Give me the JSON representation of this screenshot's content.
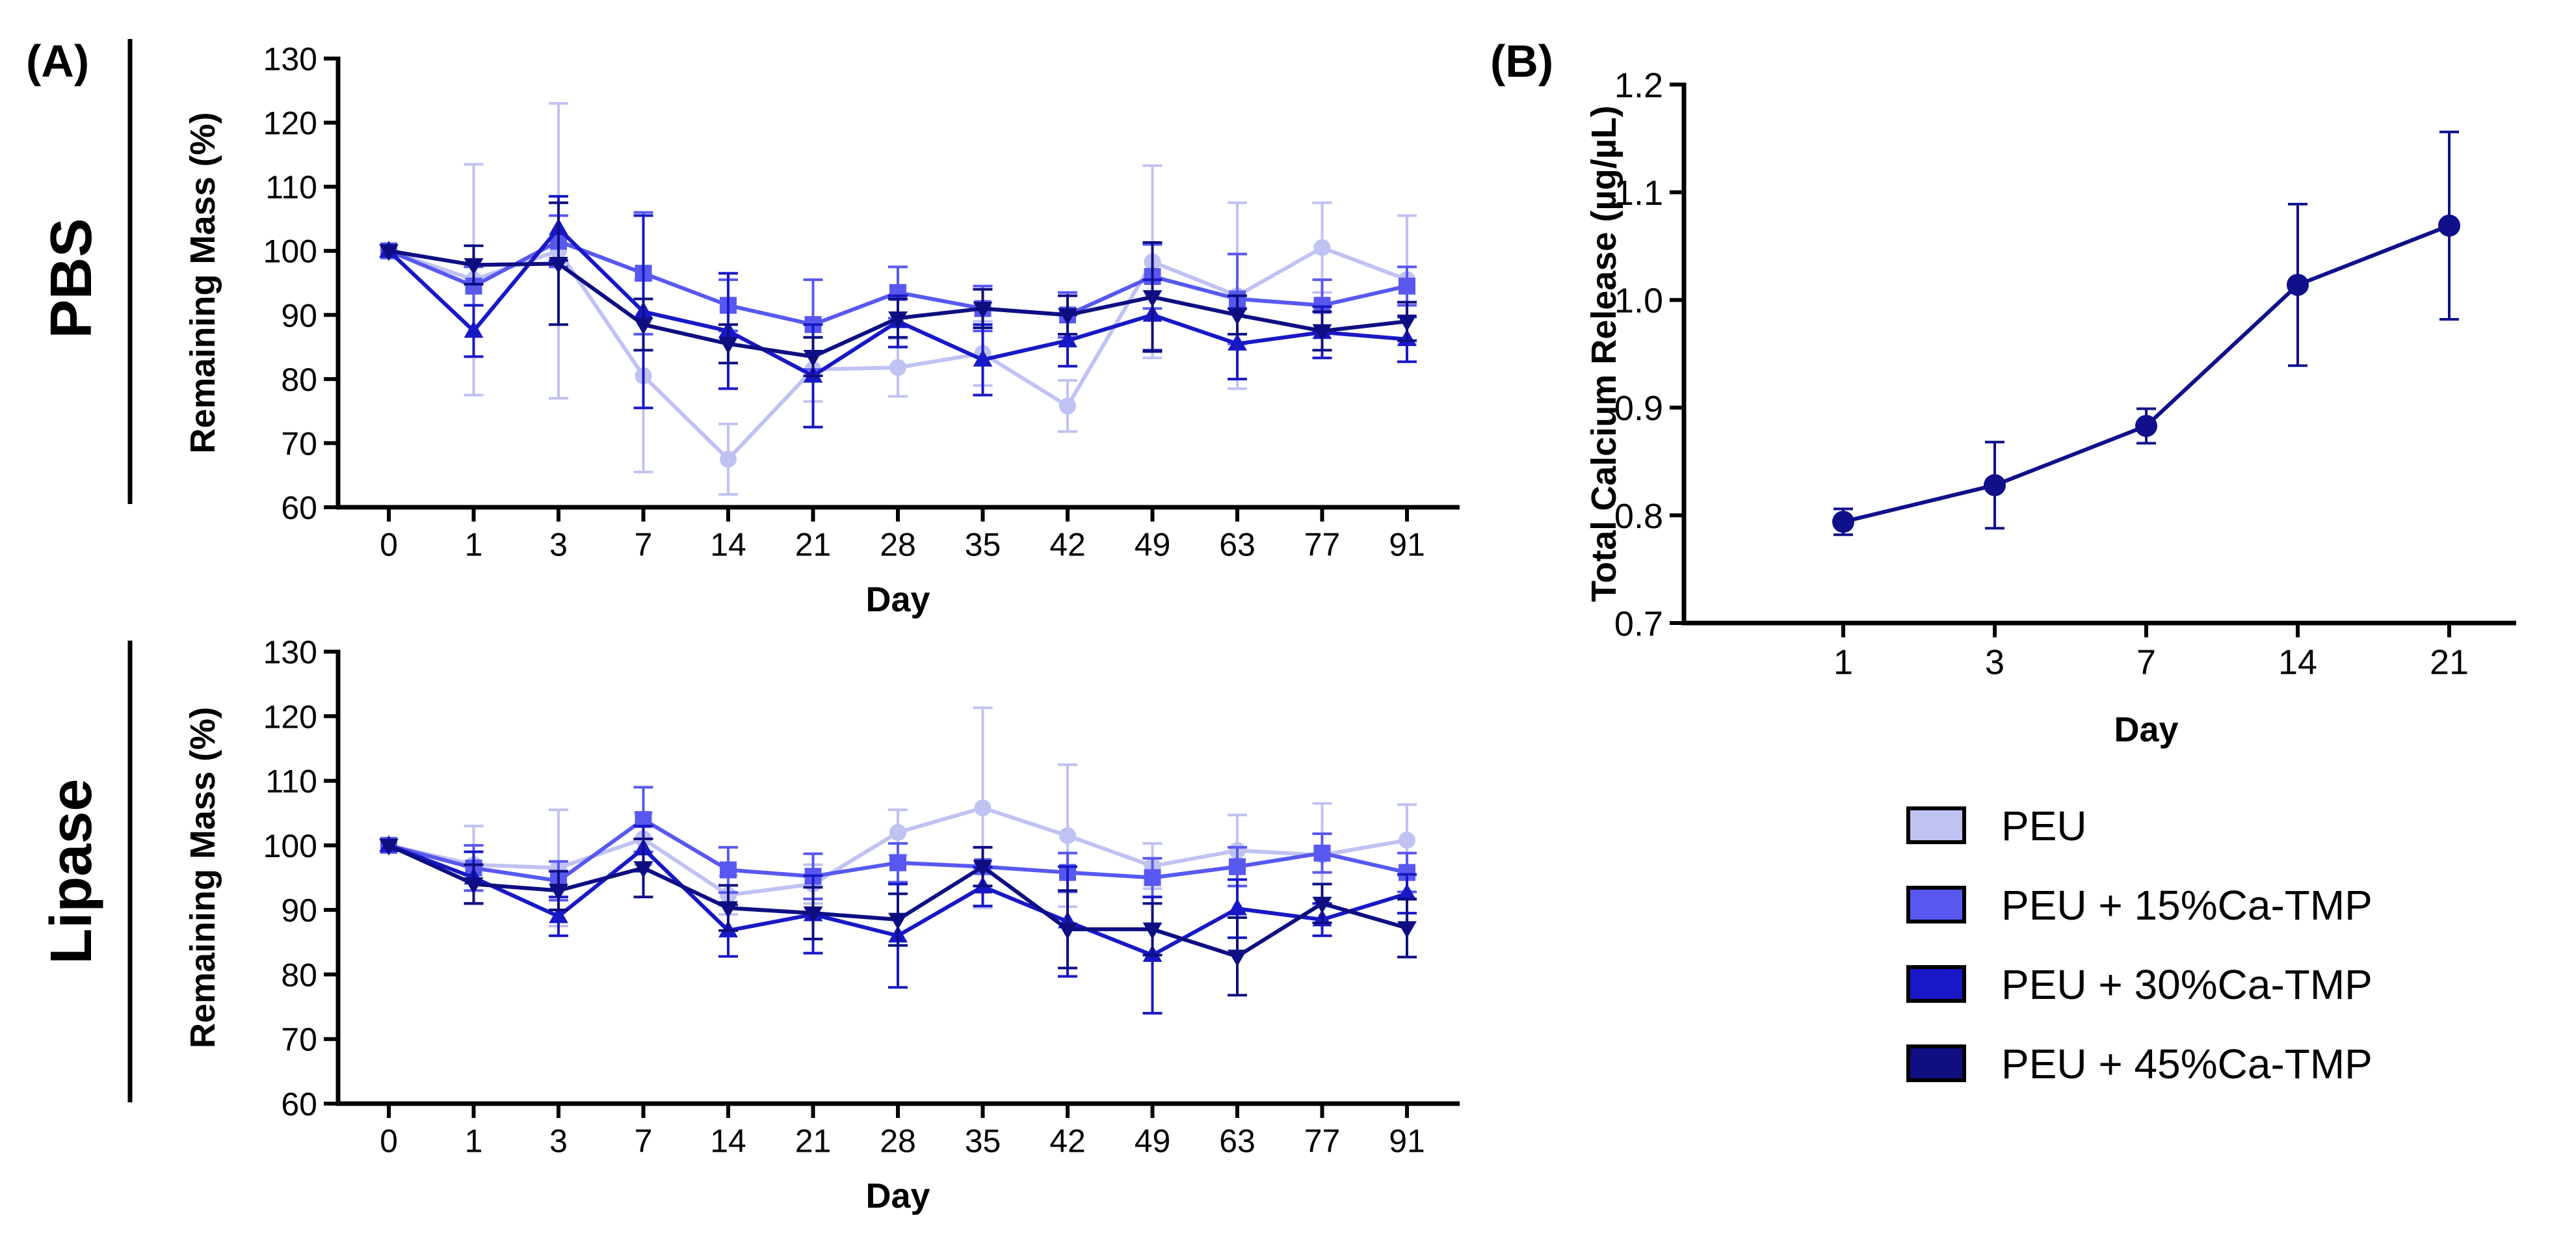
{
  "panel_labels": {
    "a": "(A)",
    "b": "(B)"
  },
  "row_labels": {
    "pbs": "PBS",
    "lipase": "Lipase"
  },
  "colors": {
    "PEU": "#c0c2f2",
    "PEU + 15%Ca-TMP": "#5858f0",
    "PEU + 30%Ca-TMP": "#1818c6",
    "PEU + 45%Ca-TMP": "#0e0e82",
    "calcium": "#10108a"
  },
  "legend": {
    "items": [
      {
        "label": "PEU",
        "color": "#c0c2f2"
      },
      {
        "label": "PEU + 15%Ca-TMP",
        "color": "#5858f0"
      },
      {
        "label": "PEU + 30%Ca-TMP",
        "color": "#1818c6"
      },
      {
        "label": "PEU + 45%Ca-TMP",
        "color": "#0e0e82"
      }
    ]
  },
  "chart_data": [
    {
      "id": "pbs",
      "type": "line",
      "title": "",
      "row_label": "PBS",
      "xlabel": "Day",
      "ylabel": "Remaining Mass (%)",
      "categories": [
        "0",
        "1",
        "3",
        "7",
        "14",
        "21",
        "28",
        "35",
        "42",
        "49",
        "63",
        "77",
        "91"
      ],
      "ylim": [
        60,
        130
      ],
      "yticks": [
        60,
        70,
        80,
        90,
        100,
        110,
        120,
        130
      ],
      "series": [
        {
          "name": "PEU",
          "marker": "circle",
          "values": [
            100,
            95.5,
            100,
            80.5,
            67.5,
            81.5,
            81.8,
            84,
            75.8,
            98.3,
            93,
            100.5,
            95.5
          ],
          "errors": [
            0,
            18,
            23,
            15,
            5.5,
            5,
            4.5,
            5,
            4,
            15,
            14.5,
            7,
            10
          ]
        },
        {
          "name": "PEU + 15%Ca-TMP",
          "marker": "square",
          "values": [
            100,
            94.5,
            101.5,
            96.5,
            91.5,
            88.5,
            93.5,
            91,
            90,
            96,
            92.5,
            91.5,
            94.5
          ],
          "errors": [
            0,
            3,
            4,
            9.5,
            4,
            7,
            4,
            3.5,
            3.5,
            5,
            7,
            4,
            3
          ]
        },
        {
          "name": "PEU + 30%Ca-TMP",
          "marker": "triangle-up",
          "values": [
            100,
            87.5,
            103.5,
            90.5,
            87.5,
            80.5,
            89,
            83,
            86,
            90,
            85.5,
            87.3,
            86.2
          ],
          "errors": [
            0,
            4,
            5,
            15,
            9,
            8,
            4,
            5.5,
            4,
            5.5,
            5.5,
            4,
            3.5
          ]
        },
        {
          "name": "PEU + 45%Ca-TMP",
          "marker": "triangle-down",
          "values": [
            100,
            97.8,
            98,
            88.5,
            85.5,
            83.5,
            89.5,
            91,
            90,
            92.8,
            90,
            87.5,
            89
          ],
          "errors": [
            0,
            3,
            9.5,
            4,
            3,
            3,
            3,
            3,
            3,
            8.5,
            3,
            3,
            3
          ]
        }
      ]
    },
    {
      "id": "lipase",
      "type": "line",
      "title": "",
      "row_label": "Lipase",
      "xlabel": "Day",
      "ylabel": "Remaining Mass (%)",
      "categories": [
        "0",
        "1",
        "3",
        "7",
        "14",
        "21",
        "28",
        "35",
        "42",
        "49",
        "63",
        "77",
        "91"
      ],
      "ylim": [
        60,
        130
      ],
      "yticks": [
        60,
        70,
        80,
        90,
        100,
        110,
        120,
        130
      ],
      "series": [
        {
          "name": "PEU",
          "marker": "circle",
          "values": [
            100,
            97,
            96.5,
            101,
            92.3,
            94,
            102,
            105.8,
            101.5,
            96.8,
            99.2,
            98.5,
            100.8
          ],
          "errors": [
            0,
            6,
            9,
            4,
            3,
            3,
            3.5,
            15.5,
            11,
            3.5,
            5.5,
            8,
            5.5
          ]
        },
        {
          "name": "PEU + 15%Ca-TMP",
          "marker": "square",
          "values": [
            100,
            96.5,
            94.5,
            104,
            96.2,
            95.2,
            97.3,
            96.7,
            95.8,
            95,
            96.7,
            98.8,
            95.8
          ],
          "errors": [
            0,
            3.5,
            3,
            5,
            3.5,
            3.5,
            3,
            3,
            3,
            3,
            3,
            3,
            3
          ]
        },
        {
          "name": "PEU + 30%Ca-TMP",
          "marker": "triangle-up",
          "values": [
            100,
            95,
            89,
            99.5,
            86.8,
            89.3,
            86,
            93.6,
            88.2,
            83,
            90.2,
            88.5,
            92.5
          ],
          "errors": [
            0,
            4,
            3,
            3.5,
            4,
            6,
            8,
            3,
            8.5,
            9,
            4.5,
            2.5,
            3
          ]
        },
        {
          "name": "PEU + 45%Ca-TMP",
          "marker": "triangle-down",
          "values": [
            100,
            94,
            93,
            96.5,
            90.3,
            89.5,
            88.5,
            96.7,
            87,
            87,
            82.8,
            91,
            87.2
          ],
          "errors": [
            0,
            3,
            3,
            4.5,
            3.5,
            4,
            4,
            3,
            6,
            4,
            6,
            3,
            4.5
          ]
        }
      ]
    },
    {
      "id": "calcium",
      "type": "line",
      "title": "",
      "xlabel": "Day",
      "ylabel": "Total Calcium Release (µg/µL)",
      "categories": [
        "1",
        "3",
        "7",
        "14",
        "21"
      ],
      "ylim": [
        0.7,
        1.2
      ],
      "yticks": [
        "0.7",
        "0.8",
        "0.9",
        "1.0",
        "1.1",
        "1.2"
      ],
      "series": [
        {
          "name": "Total Calcium Release",
          "marker": "circle",
          "values": [
            0.794,
            0.828,
            0.883,
            1.014,
            1.069
          ],
          "errors": [
            0.012,
            0.04,
            0.016,
            0.075,
            0.087
          ]
        }
      ]
    }
  ]
}
